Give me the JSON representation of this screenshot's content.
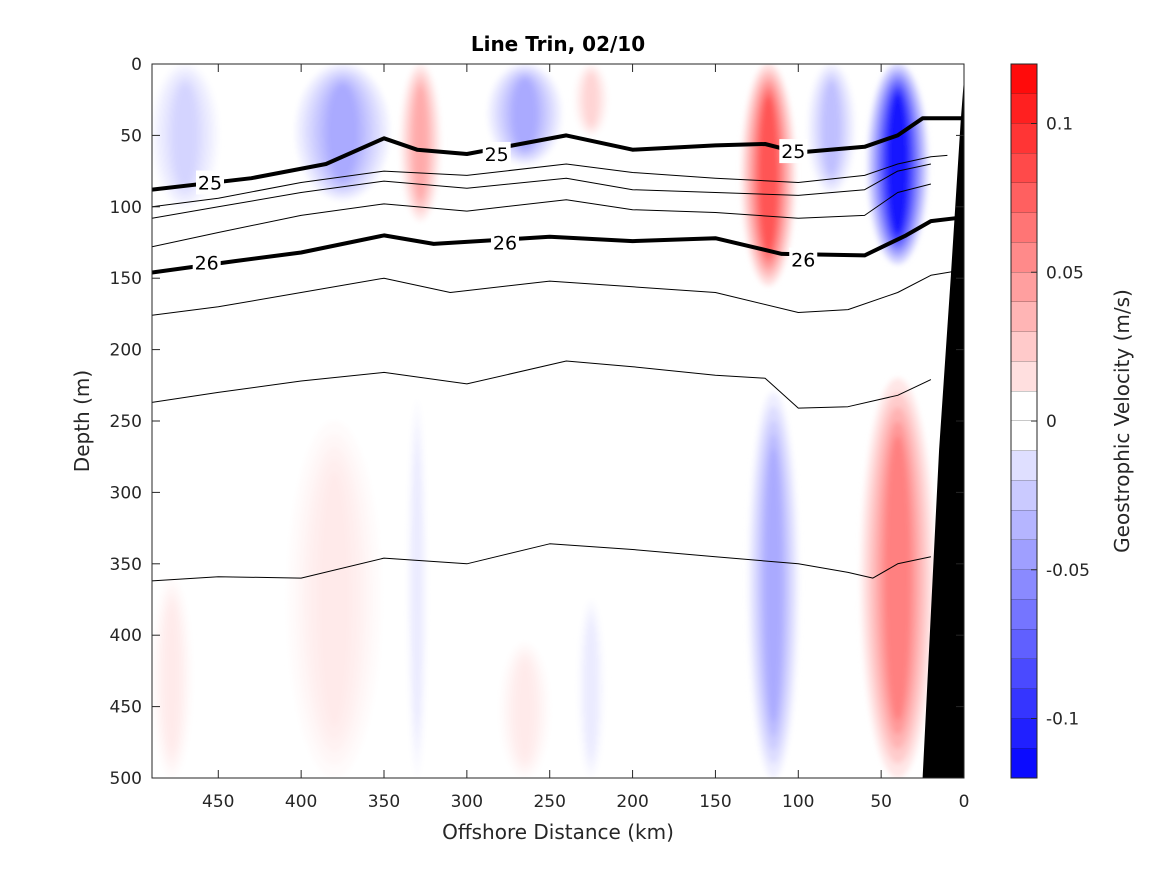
{
  "chart_data": {
    "type": "contour",
    "title": "Line Trin, 02/10",
    "xlabel": "Offshore Distance (km)",
    "ylabel": "Depth (m)",
    "xlim": [
      490,
      0
    ],
    "ylim": [
      0,
      500
    ],
    "x_reversed": true,
    "y_reversed": true,
    "xticks": [
      450,
      400,
      350,
      300,
      250,
      200,
      150,
      100,
      50,
      0
    ],
    "yticks": [
      0,
      50,
      100,
      150,
      200,
      250,
      300,
      350,
      400,
      450,
      500
    ],
    "colorbar": {
      "label": "Geostrophic Velocity (m/s)",
      "range": [
        -0.12,
        0.12
      ],
      "step": 0.01,
      "tick_values": [
        0.1,
        0.05,
        0,
        -0.05,
        -0.1
      ],
      "tick_labels": [
        "0.1",
        "0.05",
        "0",
        "-0.05",
        "-0.1"
      ],
      "colormap": "blue-white-red",
      "positive_color": "#ff0000",
      "negative_color": "#0000ff",
      "zero_color": "#ffffff"
    },
    "velocity_features": [
      {
        "x": 470,
        "z0": 0,
        "z1": 100,
        "halfwidth": 20,
        "value": -0.02
      },
      {
        "x": 375,
        "z0": 0,
        "z1": 95,
        "halfwidth": 28,
        "value": -0.04
      },
      {
        "x": 328,
        "z0": 0,
        "z1": 110,
        "halfwidth": 12,
        "value": 0.04
      },
      {
        "x": 265,
        "z0": 0,
        "z1": 70,
        "halfwidth": 22,
        "value": -0.04
      },
      {
        "x": 225,
        "z0": 0,
        "z1": 50,
        "halfwidth": 10,
        "value": 0.02
      },
      {
        "x": 118,
        "z0": 0,
        "z1": 155,
        "halfwidth": 16,
        "value": 0.08
      },
      {
        "x": 80,
        "z0": 0,
        "z1": 90,
        "halfwidth": 14,
        "value": -0.03
      },
      {
        "x": 40,
        "z0": 0,
        "z1": 140,
        "halfwidth": 18,
        "value": -0.11
      },
      {
        "x": 330,
        "z0": 235,
        "z1": 500,
        "halfwidth": 6,
        "value": -0.01
      },
      {
        "x": 380,
        "z0": 250,
        "z1": 500,
        "halfwidth": 28,
        "value": 0.01
      },
      {
        "x": 265,
        "z0": 405,
        "z1": 500,
        "halfwidth": 15,
        "value": 0.01
      },
      {
        "x": 225,
        "z0": 375,
        "z1": 500,
        "halfwidth": 8,
        "value": -0.01
      },
      {
        "x": 115,
        "z0": 230,
        "z1": 500,
        "halfwidth": 15,
        "value": -0.04
      },
      {
        "x": 40,
        "z0": 220,
        "z1": 500,
        "halfwidth": 22,
        "value": 0.06
      },
      {
        "x": 478,
        "z0": 360,
        "z1": 500,
        "halfwidth": 12,
        "value": 0.01
      }
    ],
    "density_contours": [
      {
        "value": 24,
        "label": "",
        "bold": false,
        "points": [
          [
            490,
            100
          ],
          [
            450,
            94
          ],
          [
            400,
            83
          ],
          [
            350,
            75
          ],
          [
            300,
            78
          ],
          [
            240,
            70
          ],
          [
            200,
            76
          ],
          [
            150,
            80
          ],
          [
            100,
            83
          ],
          [
            60,
            78
          ],
          [
            40,
            70
          ],
          [
            20,
            65
          ],
          [
            10,
            64
          ]
        ]
      },
      {
        "value": 25,
        "label": "25",
        "bold": true,
        "label_at": [
          [
            455,
            83
          ],
          [
            282,
            63
          ],
          [
            103,
            61
          ]
        ],
        "points": [
          [
            490,
            88
          ],
          [
            430,
            80
          ],
          [
            385,
            70
          ],
          [
            350,
            52
          ],
          [
            330,
            60
          ],
          [
            300,
            63
          ],
          [
            240,
            50
          ],
          [
            200,
            60
          ],
          [
            150,
            57
          ],
          [
            120,
            56
          ],
          [
            100,
            62
          ],
          [
            60,
            58
          ],
          [
            40,
            50
          ],
          [
            25,
            38
          ],
          [
            0,
            38
          ]
        ]
      },
      {
        "value": 25.3,
        "label": "",
        "bold": false,
        "points": [
          [
            490,
            108
          ],
          [
            450,
            100
          ],
          [
            400,
            90
          ],
          [
            350,
            82
          ],
          [
            300,
            87
          ],
          [
            240,
            80
          ],
          [
            200,
            88
          ],
          [
            150,
            90
          ],
          [
            100,
            92
          ],
          [
            60,
            88
          ],
          [
            40,
            75
          ],
          [
            20,
            70
          ]
        ]
      },
      {
        "value": 25.6,
        "label": "",
        "bold": false,
        "points": [
          [
            490,
            128
          ],
          [
            450,
            118
          ],
          [
            400,
            106
          ],
          [
            350,
            98
          ],
          [
            300,
            103
          ],
          [
            240,
            95
          ],
          [
            200,
            102
          ],
          [
            150,
            104
          ],
          [
            100,
            108
          ],
          [
            60,
            106
          ],
          [
            40,
            90
          ],
          [
            20,
            84
          ]
        ]
      },
      {
        "value": 26,
        "label": "26",
        "bold": true,
        "label_at": [
          [
            457,
            139
          ],
          [
            277,
            125
          ],
          [
            97,
            137
          ]
        ],
        "points": [
          [
            490,
            146
          ],
          [
            440,
            138
          ],
          [
            400,
            132
          ],
          [
            350,
            120
          ],
          [
            320,
            126
          ],
          [
            250,
            121
          ],
          [
            200,
            124
          ],
          [
            150,
            122
          ],
          [
            110,
            133
          ],
          [
            60,
            134
          ],
          [
            35,
            120
          ],
          [
            20,
            110
          ],
          [
            5,
            108
          ]
        ]
      },
      {
        "value": 26.3,
        "label": "",
        "bold": false,
        "points": [
          [
            490,
            176
          ],
          [
            450,
            170
          ],
          [
            400,
            160
          ],
          [
            350,
            150
          ],
          [
            310,
            160
          ],
          [
            250,
            152
          ],
          [
            200,
            156
          ],
          [
            150,
            160
          ],
          [
            100,
            174
          ],
          [
            70,
            172
          ],
          [
            40,
            160
          ],
          [
            20,
            148
          ],
          [
            5,
            145
          ]
        ]
      },
      {
        "value": 26.6,
        "label": "",
        "bold": false,
        "points": [
          [
            490,
            237
          ],
          [
            450,
            230
          ],
          [
            400,
            222
          ],
          [
            350,
            216
          ],
          [
            300,
            224
          ],
          [
            240,
            208
          ],
          [
            200,
            212
          ],
          [
            150,
            218
          ],
          [
            120,
            220
          ],
          [
            100,
            241
          ],
          [
            70,
            240
          ],
          [
            40,
            232
          ],
          [
            20,
            221
          ]
        ]
      },
      {
        "value": 26.9,
        "label": "",
        "bold": false,
        "points": [
          [
            490,
            362
          ],
          [
            450,
            359
          ],
          [
            400,
            360
          ],
          [
            350,
            346
          ],
          [
            300,
            350
          ],
          [
            250,
            336
          ],
          [
            200,
            340
          ],
          [
            150,
            345
          ],
          [
            100,
            350
          ],
          [
            70,
            356
          ],
          [
            55,
            360
          ],
          [
            40,
            350
          ],
          [
            20,
            345
          ]
        ]
      }
    ],
    "bottom_topography": {
      "color": "#000000",
      "points": [
        [
          0,
          10
        ],
        [
          0,
          500
        ],
        [
          25,
          500
        ],
        [
          15,
          270
        ],
        [
          8,
          150
        ],
        [
          2,
          40
        ]
      ]
    }
  }
}
